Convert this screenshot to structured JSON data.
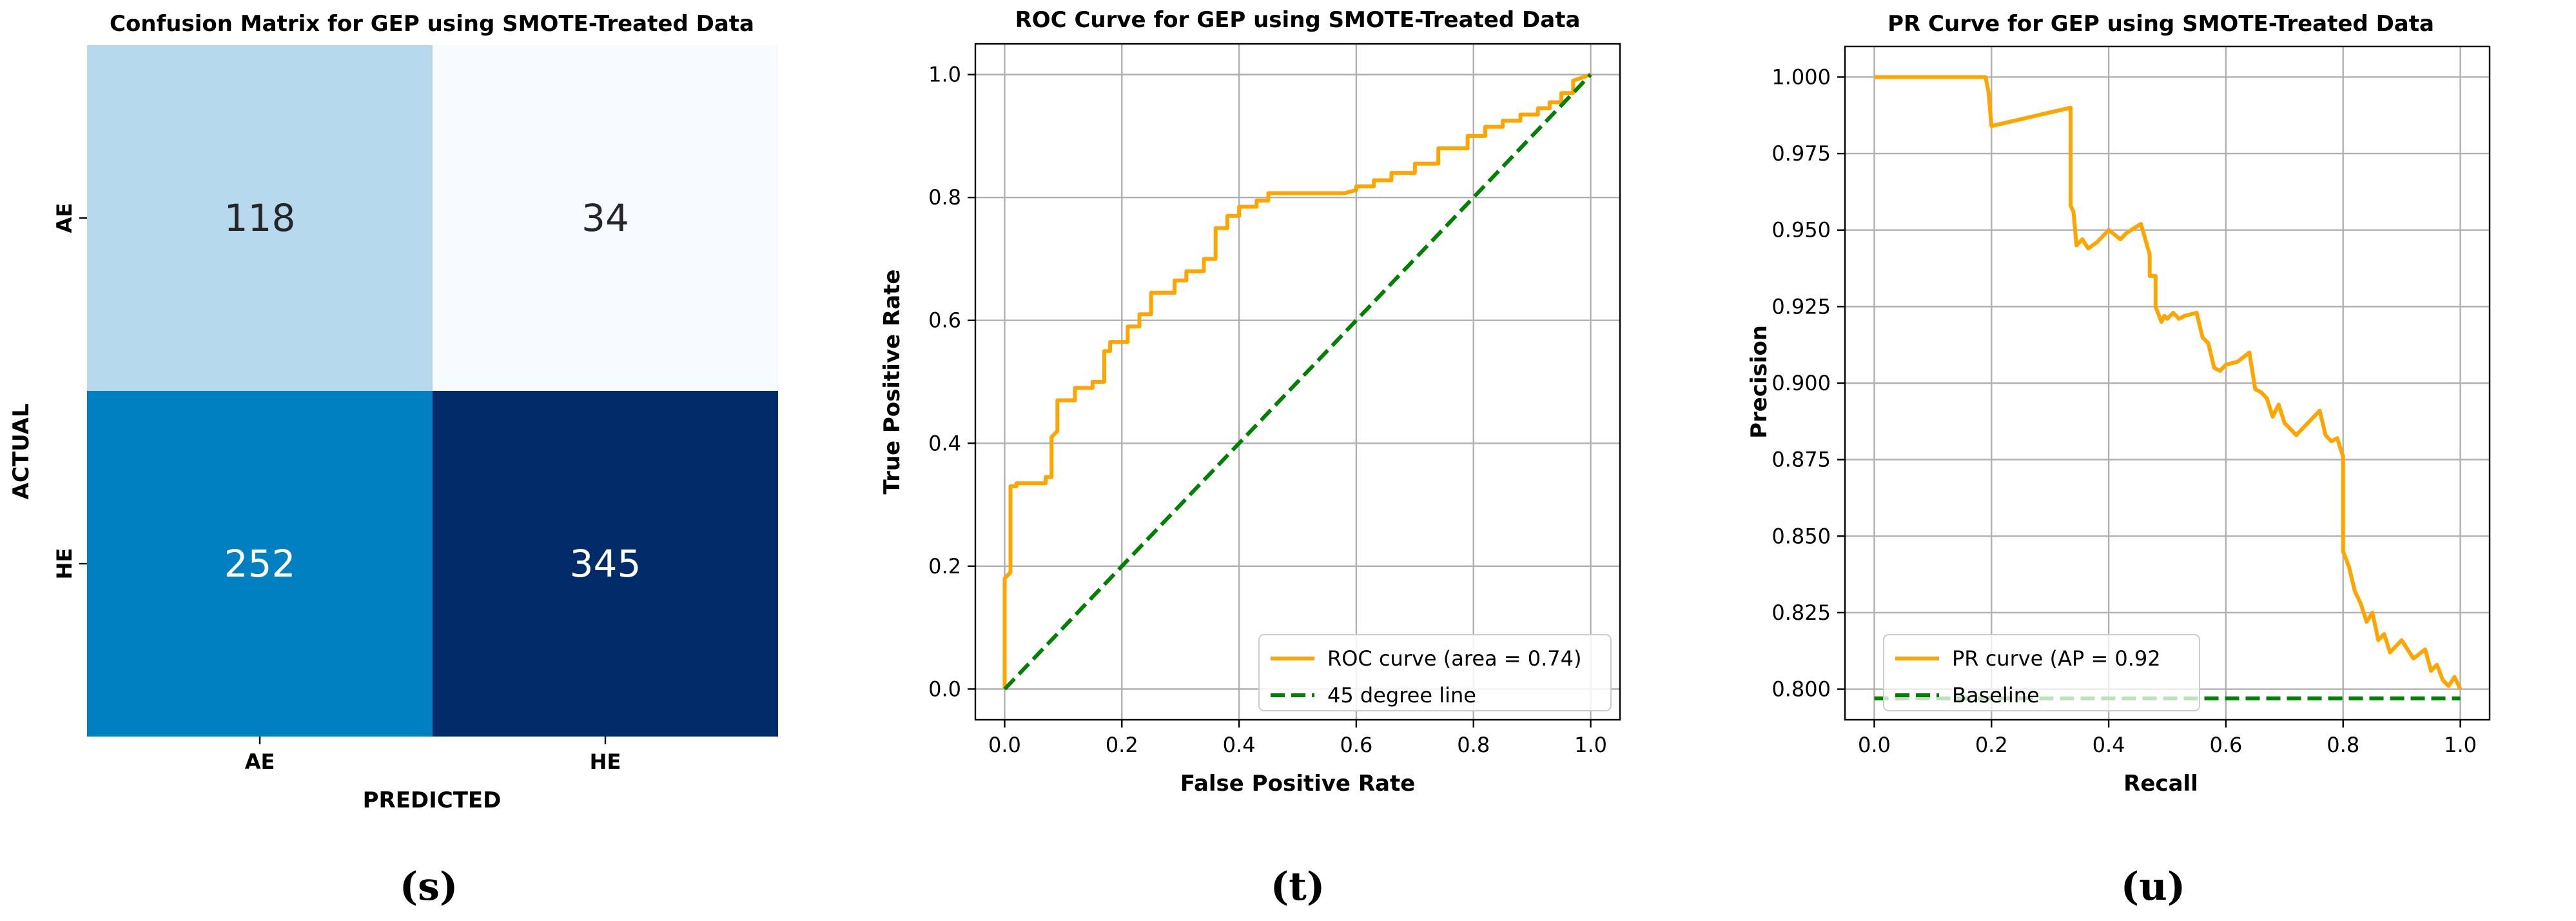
{
  "colors": {
    "roc_curve": "#FFA500",
    "pr_curve": "#FFA500",
    "reference_line": "#008000",
    "grid": "#b0b0b0",
    "axis": "#000000",
    "cm_low_text": "#262626",
    "cm_high_text": "#ffffff"
  },
  "chart_data": [
    {
      "type": "heatmap",
      "title": "Confusion Matrix for GEP using SMOTE-Treated Data",
      "xlabel": "PREDICTED",
      "ylabel": "ACTUAL",
      "x_categories": [
        "AE",
        "HE"
      ],
      "y_categories": [
        "AE",
        "HE"
      ],
      "values": [
        [
          118,
          34
        ],
        [
          252,
          345
        ]
      ],
      "cell_colors": [
        [
          "#b7d9ee",
          "#f7fbff"
        ],
        [
          "#0080c1",
          "#022c69"
        ]
      ],
      "caption": "(s)"
    },
    {
      "type": "line",
      "title": "ROC Curve for GEP using SMOTE-Treated Data",
      "xlabel": "False Positive Rate",
      "ylabel": "True Positive Rate",
      "xlim": [
        -0.05,
        1.05
      ],
      "ylim": [
        -0.05,
        1.05
      ],
      "xticks": [
        0.0,
        0.2,
        0.4,
        0.6,
        0.8,
        1.0
      ],
      "yticks": [
        0.0,
        0.2,
        0.4,
        0.6,
        0.8,
        1.0
      ],
      "xtick_labels": [
        "0.0",
        "0.2",
        "0.4",
        "0.6",
        "0.8",
        "1.0"
      ],
      "ytick_labels": [
        "0.0",
        "0.2",
        "0.4",
        "0.6",
        "0.8",
        "1.0"
      ],
      "grid": true,
      "legend_position": "lower-right",
      "series": [
        {
          "name": "ROC curve (area = 0.74)",
          "style": "solid",
          "x": [
            0.0,
            0.0,
            0.01,
            0.01,
            0.02,
            0.02,
            0.07,
            0.07,
            0.08,
            0.08,
            0.09,
            0.09,
            0.12,
            0.12,
            0.15,
            0.15,
            0.17,
            0.17,
            0.18,
            0.18,
            0.21,
            0.21,
            0.23,
            0.23,
            0.25,
            0.25,
            0.29,
            0.29,
            0.31,
            0.31,
            0.34,
            0.34,
            0.36,
            0.36,
            0.38,
            0.38,
            0.4,
            0.4,
            0.43,
            0.43,
            0.45,
            0.45,
            0.55,
            0.58,
            0.6,
            0.6,
            0.63,
            0.63,
            0.66,
            0.66,
            0.7,
            0.7,
            0.74,
            0.74,
            0.79,
            0.79,
            0.82,
            0.82,
            0.85,
            0.85,
            0.88,
            0.88,
            0.91,
            0.91,
            0.93,
            0.93,
            0.95,
            0.95,
            0.97,
            0.97,
            1.0
          ],
          "y": [
            0.0,
            0.18,
            0.19,
            0.33,
            0.33,
            0.335,
            0.335,
            0.345,
            0.345,
            0.41,
            0.42,
            0.47,
            0.47,
            0.49,
            0.49,
            0.5,
            0.5,
            0.55,
            0.55,
            0.565,
            0.565,
            0.59,
            0.59,
            0.61,
            0.61,
            0.645,
            0.645,
            0.665,
            0.665,
            0.68,
            0.68,
            0.7,
            0.7,
            0.75,
            0.75,
            0.77,
            0.77,
            0.785,
            0.785,
            0.795,
            0.795,
            0.807,
            0.807,
            0.807,
            0.812,
            0.818,
            0.818,
            0.828,
            0.828,
            0.84,
            0.84,
            0.855,
            0.855,
            0.88,
            0.88,
            0.9,
            0.9,
            0.915,
            0.915,
            0.925,
            0.925,
            0.935,
            0.935,
            0.945,
            0.945,
            0.955,
            0.955,
            0.97,
            0.97,
            0.99,
            1.0
          ]
        },
        {
          "name": "45 degree line",
          "style": "dashed",
          "x": [
            0.0,
            1.0
          ],
          "y": [
            0.0,
            1.0
          ]
        }
      ],
      "caption": "(t)"
    },
    {
      "type": "line",
      "title": "PR Curve for GEP using SMOTE-Treated Data",
      "xlabel": "Recall",
      "ylabel": "Precision",
      "xlim": [
        -0.05,
        1.05
      ],
      "ylim": [
        0.79,
        1.01
      ],
      "xticks": [
        0.0,
        0.2,
        0.4,
        0.6,
        0.8,
        1.0
      ],
      "yticks": [
        0.8,
        0.825,
        0.85,
        0.875,
        0.9,
        0.925,
        0.95,
        0.975,
        1.0
      ],
      "xtick_labels": [
        "0.0",
        "0.2",
        "0.4",
        "0.6",
        "0.8",
        "1.0"
      ],
      "ytick_labels": [
        "0.800",
        "0.825",
        "0.850",
        "0.875",
        "0.900",
        "0.925",
        "0.950",
        "0.975",
        "1.000"
      ],
      "grid": true,
      "legend_position": "lower-left",
      "series": [
        {
          "name": "PR curve (AP = 0.92",
          "style": "solid",
          "x": [
            0.0,
            0.19,
            0.195,
            0.2,
            0.335,
            0.335,
            0.34,
            0.345,
            0.355,
            0.365,
            0.38,
            0.4,
            0.42,
            0.43,
            0.455,
            0.47,
            0.47,
            0.48,
            0.48,
            0.49,
            0.495,
            0.5,
            0.51,
            0.52,
            0.53,
            0.55,
            0.56,
            0.57,
            0.58,
            0.59,
            0.6,
            0.62,
            0.64,
            0.65,
            0.66,
            0.67,
            0.68,
            0.69,
            0.7,
            0.72,
            0.74,
            0.76,
            0.77,
            0.78,
            0.79,
            0.8,
            0.8,
            0.81,
            0.82,
            0.83,
            0.84,
            0.85,
            0.86,
            0.87,
            0.88,
            0.9,
            0.92,
            0.94,
            0.95,
            0.96,
            0.97,
            0.98,
            0.99,
            1.0
          ],
          "y": [
            1.0,
            1.0,
            0.995,
            0.984,
            0.99,
            0.958,
            0.956,
            0.945,
            0.947,
            0.944,
            0.946,
            0.95,
            0.947,
            0.949,
            0.952,
            0.942,
            0.935,
            0.935,
            0.925,
            0.92,
            0.922,
            0.921,
            0.923,
            0.921,
            0.922,
            0.923,
            0.915,
            0.913,
            0.905,
            0.904,
            0.906,
            0.907,
            0.91,
            0.898,
            0.897,
            0.895,
            0.889,
            0.893,
            0.887,
            0.883,
            0.887,
            0.891,
            0.883,
            0.881,
            0.882,
            0.876,
            0.845,
            0.84,
            0.832,
            0.828,
            0.822,
            0.825,
            0.816,
            0.818,
            0.812,
            0.816,
            0.81,
            0.813,
            0.806,
            0.808,
            0.803,
            0.801,
            0.804,
            0.8
          ]
        },
        {
          "name": "Baseline",
          "style": "dashed",
          "x": [
            0.0,
            1.0
          ],
          "y": [
            0.797,
            0.797
          ]
        }
      ],
      "caption": "(u)"
    }
  ]
}
